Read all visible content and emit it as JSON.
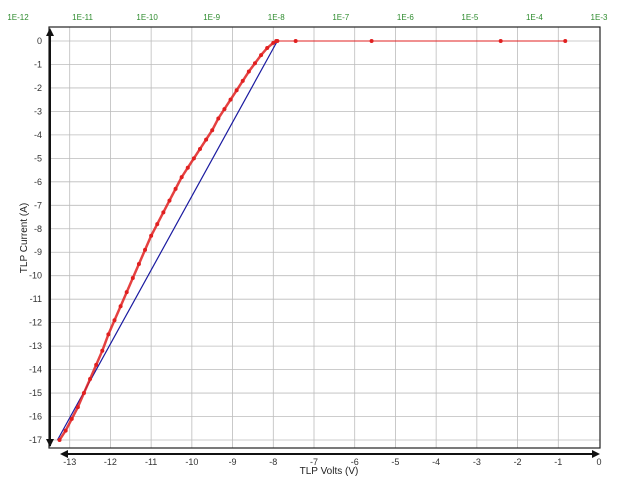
{
  "chart_data": {
    "type": "scatter",
    "xlabel": "TLP Volts (V)",
    "ylabel": "TLP Current (A)",
    "xlim": [
      -14,
      0
    ],
    "ylim": [
      -17,
      0
    ],
    "x_ticks": [
      "-13",
      "-12",
      "-11",
      "-10",
      "-9",
      "-8",
      "-7",
      "-6",
      "-5",
      "-4",
      "-3",
      "-2",
      "-1",
      "0"
    ],
    "y_ticks": [
      "0",
      "-1",
      "-2",
      "-3",
      "-4",
      "-5",
      "-6",
      "-7",
      "-8",
      "-9",
      "-10",
      "-11",
      "-12",
      "-13",
      "-14",
      "-15",
      "-16",
      "-17"
    ],
    "top_axis": {
      "scale": "log",
      "ticks": [
        "1E-12",
        "1E-11",
        "1E-10",
        "1E-9",
        "1E-8",
        "1E-7",
        "1E-6",
        "1E-5",
        "1E-4",
        "1E-3"
      ]
    },
    "grid": true,
    "colors": {
      "iv_points": "#e02020",
      "fit_line": "#1a1aa0",
      "leakage": "#e02020",
      "top_axis_text": "#2e8b2e"
    },
    "series": [
      {
        "style": "scatter",
        "x": [
          -13.25,
          -13.1,
          -12.95,
          -12.8,
          -12.65,
          -12.5,
          -12.35,
          -12.2,
          -12.05,
          -11.9,
          -11.75,
          -11.6,
          -11.45,
          -11.3,
          -11.15,
          -11.0,
          -10.85,
          -10.7,
          -10.55,
          -10.4,
          -10.25,
          -10.1,
          -9.95,
          -9.8,
          -9.65,
          -9.5,
          -9.35,
          -9.2,
          -9.05,
          -8.9,
          -8.75,
          -8.6,
          -8.45,
          -8.3,
          -8.15,
          -8.0,
          -7.9
        ],
        "y": [
          -17.0,
          -16.6,
          -16.1,
          -15.6,
          -15.0,
          -14.4,
          -13.8,
          -13.2,
          -12.5,
          -11.9,
          -11.3,
          -10.7,
          -10.1,
          -9.5,
          -8.9,
          -8.3,
          -7.8,
          -7.3,
          -6.8,
          -6.3,
          -5.8,
          -5.4,
          -5.0,
          -4.6,
          -4.2,
          -3.8,
          -3.3,
          -2.9,
          -2.5,
          -2.1,
          -1.7,
          -1.3,
          -0.95,
          -0.6,
          -0.3,
          -0.08,
          0.0
        ]
      },
      {
        "style": "line",
        "x": [
          -13.3,
          -7.9
        ],
        "y": [
          -17.0,
          0.0
        ]
      },
      {
        "style": "line-markers",
        "x_axis": "top-log",
        "x": [
          1e-08,
          2e-08,
          3e-07,
          3e-05,
          0.0003
        ],
        "y": [
          0,
          0,
          0,
          0,
          0
        ]
      }
    ]
  }
}
